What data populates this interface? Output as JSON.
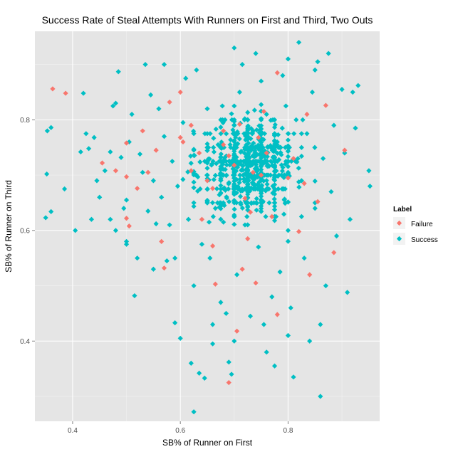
{
  "colors": {
    "panel_bg": "#e5e5e5",
    "grid_major": "#ffffff",
    "grid_minor": "#f2f2f2",
    "failure": "#f8766d",
    "success": "#00bfc4",
    "tick": "#7f7f7f",
    "tick_label": "#4d4d4d"
  },
  "chart_data": {
    "type": "scatter",
    "title": "Success Rate of Steal Attempts With Runners on First and Third, Two Outs",
    "xlabel": "SB% of Runner on First",
    "ylabel": "SB% of Runner on Third",
    "xlim": [
      0.33,
      0.97
    ],
    "ylim": [
      0.255,
      0.96
    ],
    "xticks": [
      0.4,
      0.6,
      0.8
    ],
    "yticks": [
      0.4,
      0.6,
      0.8
    ],
    "x_tick_labels": [
      "0.4",
      "0.6",
      "0.8"
    ],
    "y_tick_labels": [
      "0.4",
      "0.6",
      "0.8"
    ],
    "grid": true,
    "marker": "diamond",
    "legend": {
      "title": "Label",
      "position": "right",
      "entries": [
        "Failure",
        "Success"
      ]
    },
    "series": [
      {
        "name": "Failure",
        "color": "#f8766d",
        "points": [
          [
            0.363,
            0.856
          ],
          [
            0.387,
            0.848
          ],
          [
            0.455,
            0.722
          ],
          [
            0.48,
            0.708
          ],
          [
            0.5,
            0.758
          ],
          [
            0.5,
            0.697
          ],
          [
            0.5,
            0.622
          ],
          [
            0.505,
            0.608
          ],
          [
            0.52,
            0.676
          ],
          [
            0.53,
            0.78
          ],
          [
            0.54,
            0.705
          ],
          [
            0.555,
            0.745
          ],
          [
            0.565,
            0.58
          ],
          [
            0.57,
            0.532
          ],
          [
            0.58,
            0.832
          ],
          [
            0.6,
            0.85
          ],
          [
            0.6,
            0.768
          ],
          [
            0.605,
            0.76
          ],
          [
            0.62,
            0.79
          ],
          [
            0.635,
            0.74
          ],
          [
            0.64,
            0.62
          ],
          [
            0.65,
            0.69
          ],
          [
            0.66,
            0.572
          ],
          [
            0.665,
            0.503
          ],
          [
            0.68,
            0.78
          ],
          [
            0.68,
            0.755
          ],
          [
            0.69,
            0.735
          ],
          [
            0.7,
            0.718
          ],
          [
            0.705,
            0.418
          ],
          [
            0.71,
            0.792
          ],
          [
            0.715,
            0.53
          ],
          [
            0.72,
            0.658
          ],
          [
            0.725,
            0.585
          ],
          [
            0.73,
            0.633
          ],
          [
            0.735,
            0.705
          ],
          [
            0.74,
            0.505
          ],
          [
            0.745,
            0.768
          ],
          [
            0.75,
            0.7
          ],
          [
            0.755,
            0.815
          ],
          [
            0.76,
            0.74
          ],
          [
            0.77,
            0.625
          ],
          [
            0.78,
            0.885
          ],
          [
            0.8,
            0.695
          ],
          [
            0.81,
            0.73
          ],
          [
            0.82,
            0.598
          ],
          [
            0.83,
            0.685
          ],
          [
            0.835,
            0.81
          ],
          [
            0.84,
            0.52
          ],
          [
            0.855,
            0.652
          ],
          [
            0.87,
            0.826
          ],
          [
            0.885,
            0.56
          ],
          [
            0.905,
            0.745
          ],
          [
            0.69,
            0.325
          ],
          [
            0.78,
            0.448
          ],
          [
            0.62,
            0.708
          ],
          [
            0.66,
            0.676
          ]
        ]
      },
      {
        "name": "Success",
        "color": "#00bfc4",
        "points": [
          [
            0.35,
            0.623
          ],
          [
            0.352,
            0.702
          ],
          [
            0.353,
            0.78
          ],
          [
            0.36,
            0.786
          ],
          [
            0.36,
            0.634
          ],
          [
            0.385,
            0.675
          ],
          [
            0.405,
            0.6
          ],
          [
            0.415,
            0.742
          ],
          [
            0.42,
            0.848
          ],
          [
            0.425,
            0.775
          ],
          [
            0.43,
            0.748
          ],
          [
            0.435,
            0.62
          ],
          [
            0.44,
            0.768
          ],
          [
            0.445,
            0.69
          ],
          [
            0.45,
            0.66
          ],
          [
            0.46,
            0.708
          ],
          [
            0.47,
            0.742
          ],
          [
            0.475,
            0.825
          ],
          [
            0.48,
            0.83
          ],
          [
            0.48,
            0.6
          ],
          [
            0.485,
            0.887
          ],
          [
            0.49,
            0.732
          ],
          [
            0.495,
            0.64
          ],
          [
            0.5,
            0.575
          ],
          [
            0.5,
            0.655
          ],
          [
            0.505,
            0.76
          ],
          [
            0.51,
            0.81
          ],
          [
            0.515,
            0.482
          ],
          [
            0.52,
            0.55
          ],
          [
            0.525,
            0.738
          ],
          [
            0.53,
            0.705
          ],
          [
            0.535,
            0.9
          ],
          [
            0.54,
            0.635
          ],
          [
            0.545,
            0.845
          ],
          [
            0.55,
            0.69
          ],
          [
            0.555,
            0.612
          ],
          [
            0.56,
            0.82
          ],
          [
            0.565,
            0.66
          ],
          [
            0.57,
            0.77
          ],
          [
            0.575,
            0.545
          ],
          [
            0.58,
            0.61
          ],
          [
            0.585,
            0.725
          ],
          [
            0.59,
            0.433
          ],
          [
            0.595,
            0.68
          ],
          [
            0.6,
            0.405
          ],
          [
            0.605,
            0.795
          ],
          [
            0.61,
            0.875
          ],
          [
            0.615,
            0.62
          ],
          [
            0.62,
            0.36
          ],
          [
            0.625,
            0.5
          ],
          [
            0.625,
            0.272
          ],
          [
            0.63,
            0.7
          ],
          [
            0.635,
            0.342
          ],
          [
            0.64,
            0.575
          ],
          [
            0.645,
            0.333
          ],
          [
            0.65,
            0.82
          ],
          [
            0.655,
            0.55
          ],
          [
            0.66,
            0.395
          ],
          [
            0.665,
            0.64
          ],
          [
            0.67,
            0.755
          ],
          [
            0.675,
            0.47
          ],
          [
            0.68,
            0.615
          ],
          [
            0.685,
            0.45
          ],
          [
            0.69,
            0.362
          ],
          [
            0.695,
            0.34
          ],
          [
            0.7,
            0.4
          ],
          [
            0.7,
            0.68
          ],
          [
            0.705,
            0.52
          ],
          [
            0.71,
            0.85
          ],
          [
            0.715,
            0.9
          ],
          [
            0.72,
            0.61
          ],
          [
            0.725,
            0.745
          ],
          [
            0.73,
            0.445
          ],
          [
            0.735,
            0.78
          ],
          [
            0.74,
            0.92
          ],
          [
            0.745,
            0.57
          ],
          [
            0.75,
            0.695
          ],
          [
            0.755,
            0.43
          ],
          [
            0.76,
            0.81
          ],
          [
            0.765,
            0.65
          ],
          [
            0.77,
            0.48
          ],
          [
            0.775,
            0.355
          ],
          [
            0.78,
            0.76
          ],
          [
            0.785,
            0.525
          ],
          [
            0.79,
            0.88
          ],
          [
            0.795,
            0.72
          ],
          [
            0.8,
            0.6
          ],
          [
            0.805,
            0.46
          ],
          [
            0.81,
            0.335
          ],
          [
            0.815,
            0.8
          ],
          [
            0.82,
            0.94
          ],
          [
            0.825,
            0.69
          ],
          [
            0.83,
            0.55
          ],
          [
            0.835,
            0.775
          ],
          [
            0.84,
            0.4
          ],
          [
            0.845,
            0.85
          ],
          [
            0.85,
            0.64
          ],
          [
            0.855,
            0.905
          ],
          [
            0.86,
            0.3
          ],
          [
            0.865,
            0.73
          ],
          [
            0.87,
            0.5
          ],
          [
            0.875,
            0.92
          ],
          [
            0.88,
            0.67
          ],
          [
            0.885,
            0.79
          ],
          [
            0.89,
            0.59
          ],
          [
            0.9,
            0.855
          ],
          [
            0.905,
            0.74
          ],
          [
            0.91,
            0.488
          ],
          [
            0.915,
            0.62
          ],
          [
            0.92,
            0.85
          ],
          [
            0.925,
            0.785
          ],
          [
            0.93,
            0.862
          ],
          [
            0.95,
            0.708
          ],
          [
            0.952,
            0.68
          ],
          [
            0.86,
            0.43
          ],
          [
            0.76,
            0.38
          ],
          [
            0.66,
            0.43
          ],
          [
            0.8,
            0.41
          ],
          [
            0.59,
            0.55
          ],
          [
            0.55,
            0.53
          ],
          [
            0.5,
            0.58
          ],
          [
            0.47,
            0.62
          ],
          [
            0.57,
            0.9
          ],
          [
            0.63,
            0.89
          ],
          [
            0.7,
            0.93
          ],
          [
            0.75,
            0.87
          ],
          [
            0.8,
            0.91
          ],
          [
            0.85,
            0.89
          ]
        ],
        "cloud": {
          "count": 820,
          "x_mean": 0.728,
          "x_sd": 0.085,
          "y_mean": 0.715,
          "y_sd": 0.085
        }
      }
    ]
  }
}
